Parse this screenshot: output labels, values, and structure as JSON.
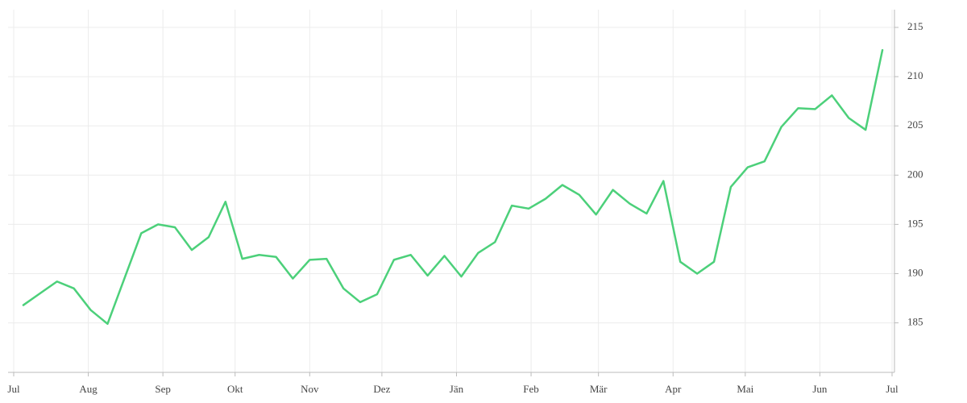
{
  "chart_data": {
    "type": "line",
    "x": [
      4,
      11,
      18,
      25,
      32,
      39,
      46,
      53,
      60,
      67,
      74,
      81,
      88,
      95,
      102,
      109,
      116,
      123,
      130,
      137,
      144,
      151,
      158,
      165,
      172,
      179,
      186,
      193,
      200,
      207,
      214,
      221,
      228,
      235,
      242,
      249,
      256,
      263,
      270,
      277,
      284,
      291,
      298,
      305,
      312,
      319,
      326,
      333,
      340,
      347,
      354,
      361
    ],
    "series": [
      {
        "color": "#4cd07a",
        "values": [
          186.8,
          188.0,
          189.2,
          188.5,
          186.3,
          184.9,
          189.5,
          194.1,
          195.0,
          194.7,
          192.4,
          193.7,
          197.3,
          191.5,
          191.9,
          191.7,
          189.5,
          191.4,
          191.5,
          188.5,
          187.1,
          187.9,
          191.4,
          191.9,
          189.8,
          191.8,
          189.7,
          192.1,
          193.2,
          196.9,
          196.6,
          197.6,
          199.0,
          198.0,
          196.0,
          198.5,
          197.1,
          196.1,
          199.4,
          191.2,
          190.0,
          191.2,
          198.8,
          200.8,
          201.4,
          204.9,
          206.8,
          206.7,
          208.1,
          205.8,
          204.6,
          212.7
        ]
      }
    ],
    "xlim": [
      0,
      365
    ],
    "xticks": [
      {
        "value": 0,
        "label": "Jul"
      },
      {
        "value": 31,
        "label": "Aug"
      },
      {
        "value": 62,
        "label": "Sep"
      },
      {
        "value": 92,
        "label": "Okt"
      },
      {
        "value": 123,
        "label": "Nov"
      },
      {
        "value": 153,
        "label": "Dez"
      },
      {
        "value": 184,
        "label": "Jän"
      },
      {
        "value": 215,
        "label": "Feb"
      },
      {
        "value": 243,
        "label": "Mär"
      },
      {
        "value": 274,
        "label": "Apr"
      },
      {
        "value": 304,
        "label": "Mai"
      },
      {
        "value": 335,
        "label": "Jun"
      },
      {
        "value": 365,
        "label": "Jul"
      }
    ],
    "ylim": [
      180.3,
      216.8
    ],
    "yticks": [
      185,
      190,
      195,
      200,
      205,
      210,
      215
    ],
    "y_axis_side": "right",
    "grid": true
  }
}
